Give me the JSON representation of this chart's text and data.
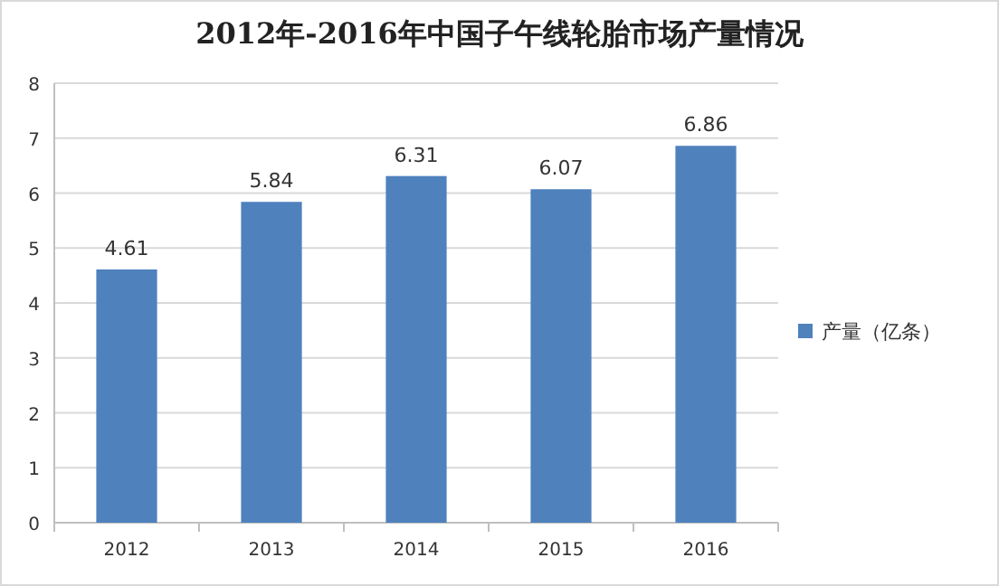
{
  "chart_data": {
    "type": "bar",
    "title": "2012年-2016年中国子午线轮胎市场产量情况",
    "categories": [
      "2012",
      "2013",
      "2014",
      "2015",
      "2016"
    ],
    "series": [
      {
        "name": "产量（亿条）",
        "color": "#4f81bd",
        "values": [
          4.61,
          5.84,
          6.31,
          6.07,
          6.86
        ]
      }
    ],
    "ylim": [
      0,
      8
    ],
    "yticks": [
      0,
      1,
      2,
      3,
      4,
      5,
      6,
      7,
      8
    ],
    "grid": "y",
    "legend": "right",
    "data_labels": true
  }
}
